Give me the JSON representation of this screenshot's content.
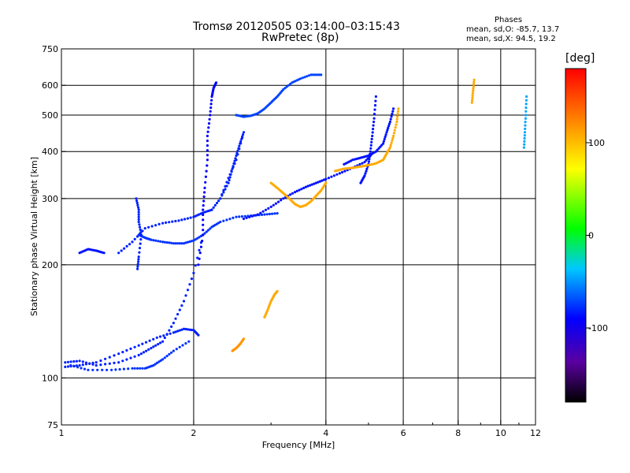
{
  "chart_data": {
    "type": "scatter",
    "title": "Tromsø 20120505 03:14:00–03:15:43",
    "subtitle": "RwPretec (8p)",
    "xlabel": "Frequency [MHz]",
    "ylabel": "Stationary phase Virtual Height [km]",
    "x_scale": "log",
    "y_scale": "log",
    "xlim": [
      1,
      12
    ],
    "ylim": [
      75,
      750
    ],
    "x_ticks": [
      1,
      2,
      4,
      6,
      8,
      10,
      12
    ],
    "x_tick_labels": [
      "1",
      "2",
      "4",
      "6",
      "8",
      "10",
      "12"
    ],
    "y_ticks": [
      75,
      100,
      200,
      300,
      400,
      500,
      600,
      750
    ],
    "y_tick_labels": [
      "75",
      "100",
      "200",
      "300",
      "400",
      "500",
      "600",
      "750"
    ],
    "x_grid": [
      2,
      4,
      6,
      8,
      10
    ],
    "y_grid": [
      100,
      200,
      300,
      400,
      500,
      600
    ],
    "legend": {
      "title": "Phases",
      "line1": "mean, sd,O:  -85.7, 13.7",
      "line2": "mean, sd,X:  94.5, 19.2"
    },
    "colorbar": {
      "unit": "[deg]",
      "ticks": [
        -100,
        0,
        100
      ],
      "tick_labels": [
        "-100",
        "0",
        "100"
      ],
      "range": [
        -180,
        180
      ]
    },
    "traces": [
      {
        "phase": -90,
        "x": [
          1.02,
          1.1,
          1.2,
          1.35,
          1.5,
          1.6,
          1.7,
          1.8,
          1.9,
          2.0,
          2.1
        ],
        "y": [
          110,
          111,
          108,
          110,
          115,
          120,
          125,
          140,
          160,
          190,
          240
        ]
      },
      {
        "phase": -85,
        "x": [
          1.05,
          1.15,
          1.3,
          1.45,
          1.55,
          1.62,
          1.7,
          1.8,
          1.95
        ],
        "y": [
          108,
          105,
          105,
          106,
          106,
          108,
          112,
          118,
          125
        ]
      },
      {
        "phase": -90,
        "x": [
          1.02,
          1.1,
          1.2,
          1.35,
          1.5,
          1.65,
          1.8,
          1.9,
          2.0,
          2.05
        ],
        "y": [
          107,
          108,
          110,
          116,
          122,
          128,
          132,
          135,
          134,
          130
        ]
      },
      {
        "phase": -95,
        "x": [
          1.1,
          1.15,
          1.2,
          1.25
        ],
        "y": [
          215,
          220,
          218,
          215
        ]
      },
      {
        "phase": -90,
        "x": [
          1.35,
          1.45,
          1.55,
          1.7,
          1.85,
          2.0,
          2.1,
          2.2
        ],
        "y": [
          215,
          230,
          250,
          258,
          262,
          268,
          275,
          280
        ]
      },
      {
        "phase": -85,
        "x": [
          1.5,
          1.55,
          1.6,
          1.7,
          1.8,
          1.9,
          2.0,
          2.1,
          2.2,
          2.3,
          2.5,
          2.7,
          2.9,
          3.1
        ],
        "y": [
          240,
          236,
          233,
          230,
          228,
          228,
          232,
          240,
          252,
          260,
          268,
          270,
          272,
          274
        ]
      },
      {
        "phase": -90,
        "x": [
          1.48,
          1.5,
          1.5,
          1.52,
          1.5,
          1.49
        ],
        "y": [
          300,
          280,
          260,
          240,
          210,
          195
        ]
      },
      {
        "phase": -100,
        "x": [
          2.05,
          2.1,
          2.1,
          2.12,
          2.15,
          2.15,
          2.18,
          2.2,
          2.22,
          2.25
        ],
        "y": [
          200,
          240,
          280,
          320,
          380,
          440,
          500,
          560,
          590,
          610
        ]
      },
      {
        "phase": -90,
        "x": [
          2.2,
          2.3,
          2.4,
          2.45,
          2.5,
          2.55,
          2.6,
          2.5,
          2.4,
          2.3
        ],
        "y": [
          280,
          300,
          330,
          360,
          390,
          420,
          450,
          380,
          340,
          300
        ]
      },
      {
        "phase": -80,
        "x": [
          2.5,
          2.6,
          2.7,
          2.8,
          2.9,
          3.0,
          3.1,
          3.2,
          3.35,
          3.5,
          3.7,
          3.9
        ],
        "y": [
          500,
          495,
          498,
          505,
          520,
          540,
          560,
          585,
          610,
          625,
          640,
          640
        ]
      },
      {
        "phase": -95,
        "x": [
          2.6,
          2.8,
          3.0,
          3.2,
          3.4,
          3.6,
          3.8,
          4.0,
          4.3,
          4.6,
          4.9,
          5.1
        ],
        "y": [
          265,
          272,
          285,
          300,
          312,
          322,
          330,
          338,
          350,
          362,
          375,
          395
        ]
      },
      {
        "phase": -95,
        "x": [
          4.8,
          4.9,
          5.0,
          5.05,
          5.1,
          5.15,
          5.2
        ],
        "y": [
          330,
          345,
          370,
          400,
          440,
          490,
          560
        ]
      },
      {
        "phase": -95,
        "x": [
          4.4,
          4.6,
          4.8,
          5.0,
          5.2,
          5.4,
          5.5,
          5.6,
          5.7
        ],
        "y": [
          370,
          380,
          385,
          390,
          400,
          420,
          450,
          480,
          520
        ]
      },
      {
        "phase": 100,
        "x": [
          3.0,
          3.1,
          3.2,
          3.3,
          3.4,
          3.5,
          3.6,
          3.7,
          3.8,
          3.9,
          4.0
        ],
        "y": [
          330,
          320,
          310,
          300,
          290,
          285,
          288,
          295,
          305,
          315,
          330
        ]
      },
      {
        "phase": 100,
        "x": [
          4.2,
          4.4,
          4.6,
          4.8,
          5.0,
          5.2,
          5.4,
          5.5,
          5.6,
          5.7,
          5.8,
          5.85
        ],
        "y": [
          355,
          360,
          362,
          365,
          368,
          372,
          380,
          395,
          410,
          440,
          480,
          520
        ]
      },
      {
        "phase": 110,
        "x": [
          2.45,
          2.5,
          2.55,
          2.6
        ],
        "y": [
          118,
          120,
          123,
          127
        ]
      },
      {
        "phase": 100,
        "x": [
          2.9,
          2.95,
          3.0,
          3.05,
          3.1
        ],
        "y": [
          145,
          152,
          160,
          166,
          170
        ]
      },
      {
        "phase": -50,
        "x": [
          11.3,
          11.35,
          11.4,
          11.45
        ],
        "y": [
          410,
          450,
          500,
          560
        ]
      },
      {
        "phase": 100,
        "x": [
          8.6,
          8.65,
          8.7
        ],
        "y": [
          540,
          580,
          620
        ]
      }
    ]
  }
}
